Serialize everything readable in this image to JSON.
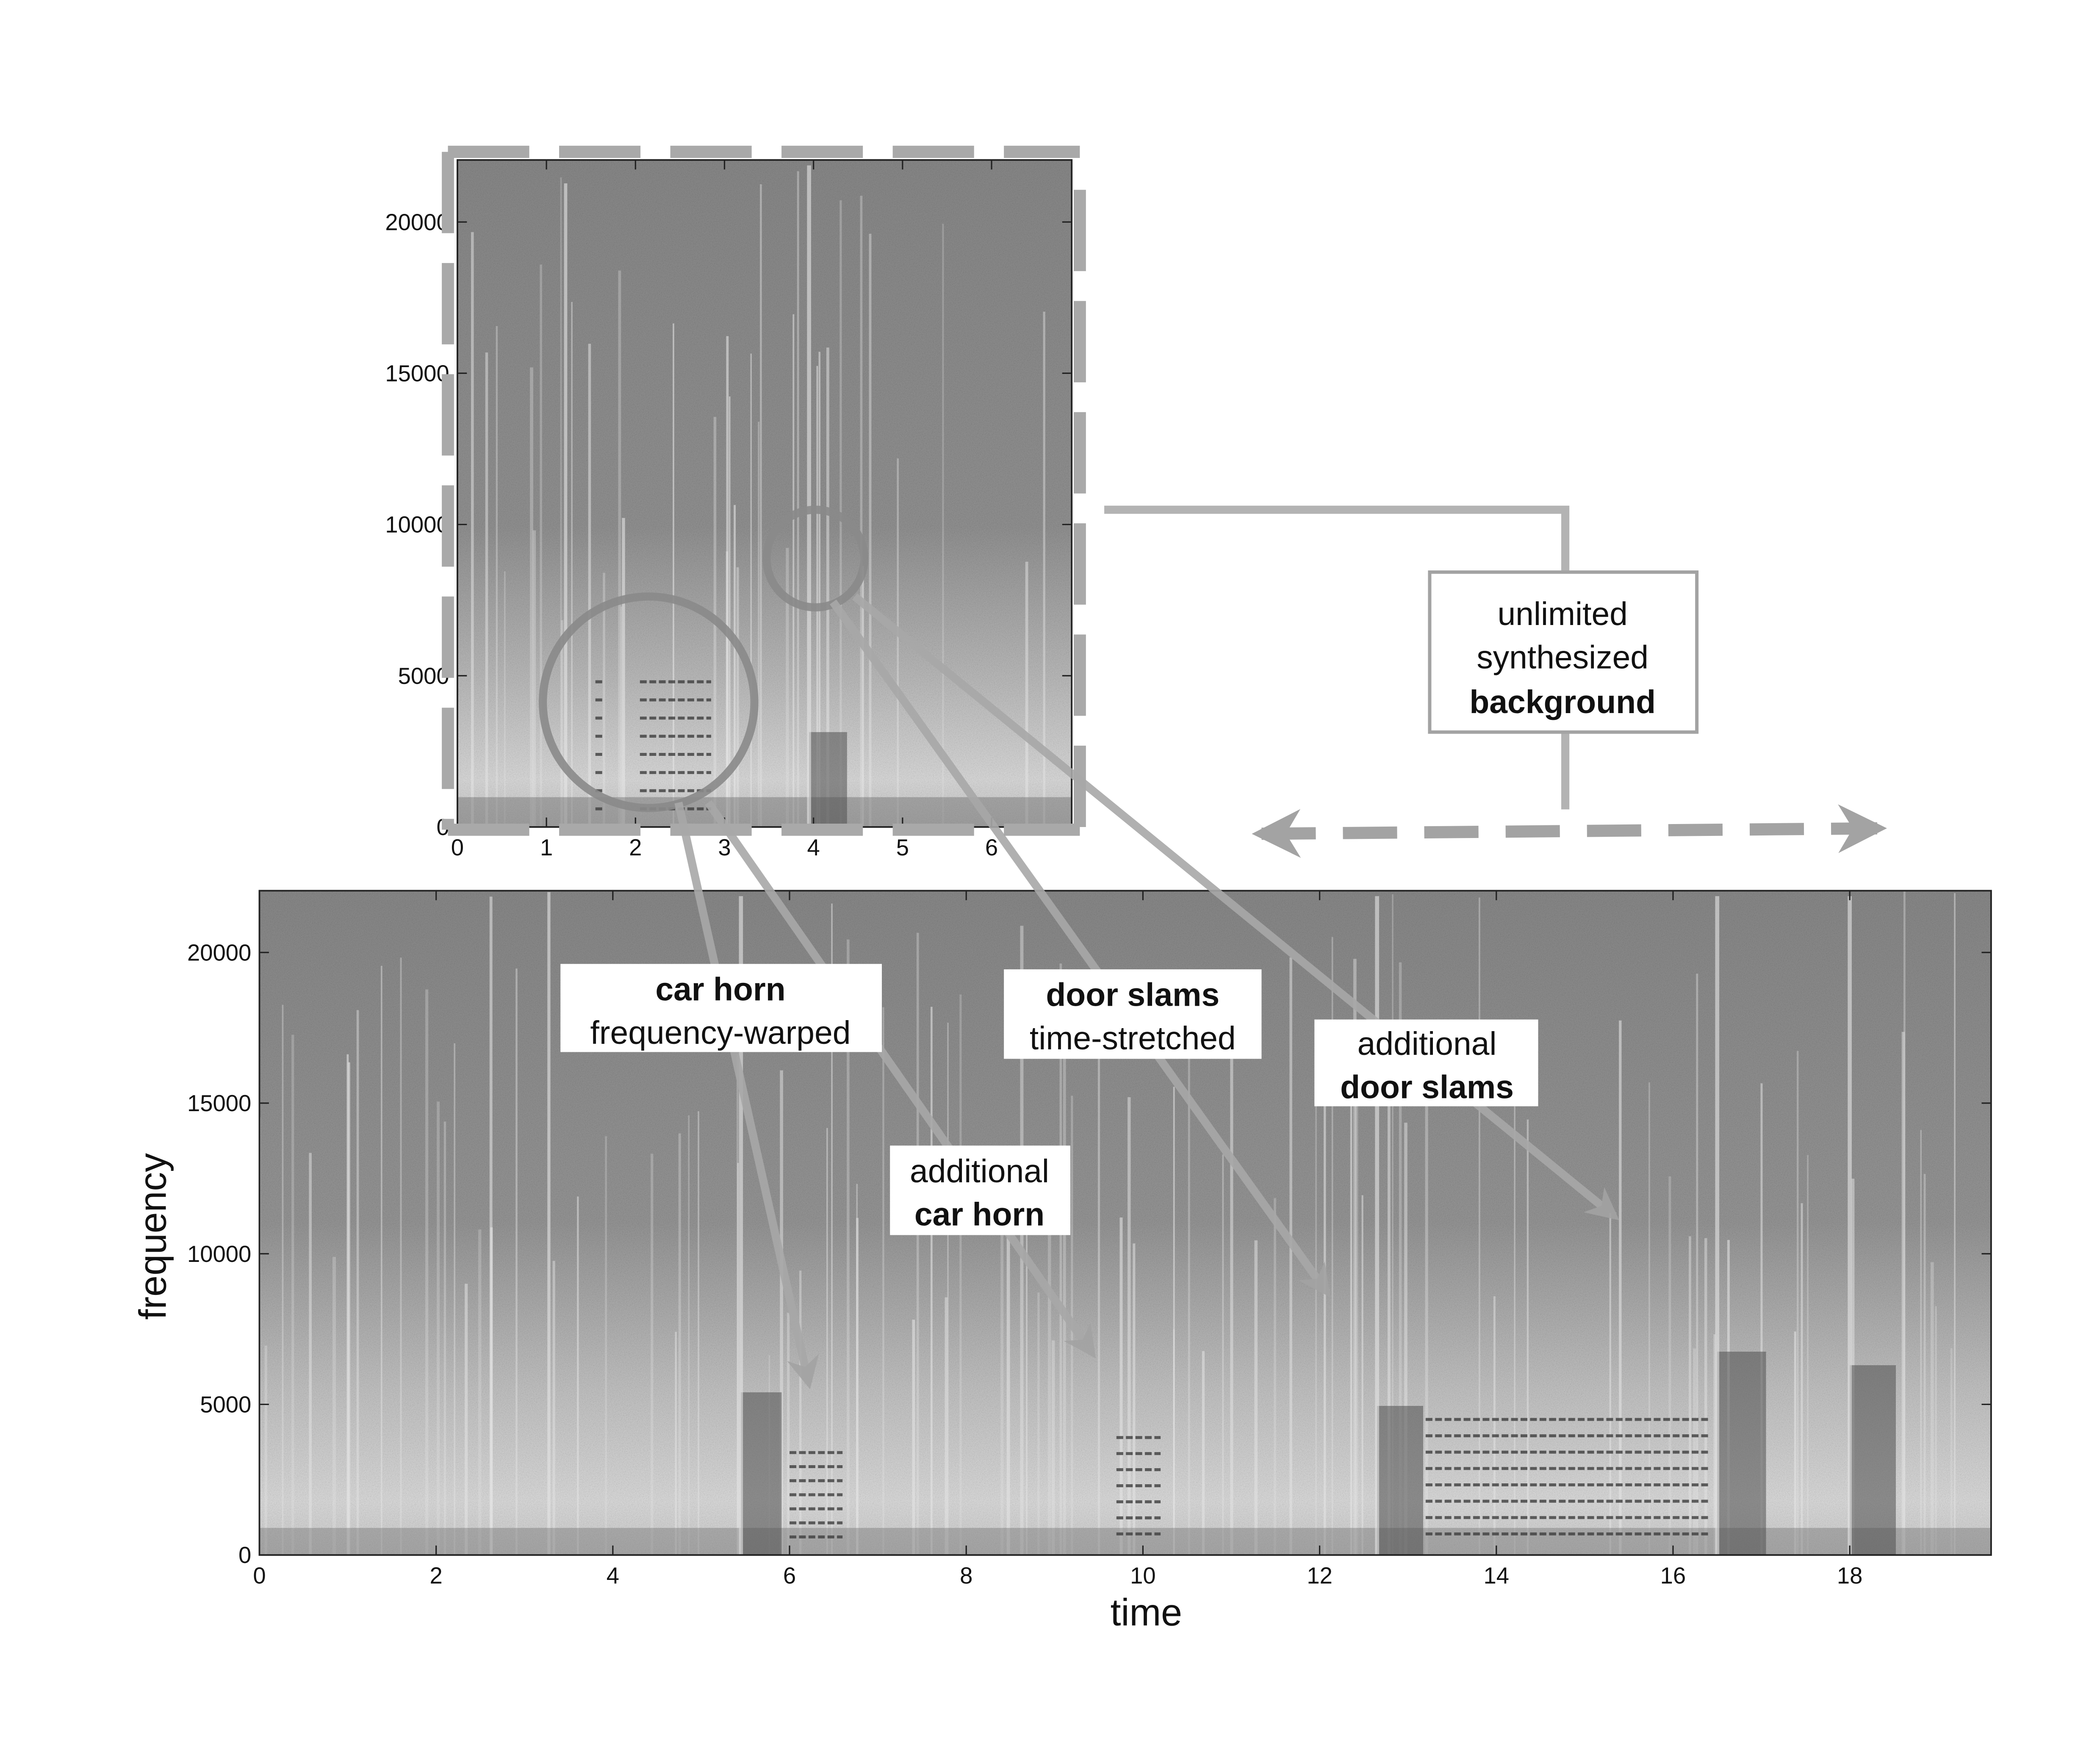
{
  "colors": {
    "spectrogram_dark": "#5e5e5e",
    "spectrogram_mid": "#8c8c8c",
    "spectrogram_light": "#d9d9d9",
    "annotation_gray": "#a8a8a8",
    "circle_gray": "#8a8a8a",
    "text": "#111111"
  },
  "source_spectrogram": {
    "x_ticks": [
      "0",
      "1",
      "2",
      "3",
      "4",
      "5",
      "6"
    ],
    "y_ticks": [
      "0",
      "5000",
      "10000",
      "15000",
      "20000"
    ],
    "x_range": [
      0,
      6.9
    ],
    "y_range": [
      0,
      22050
    ]
  },
  "synthesized_spectrogram": {
    "x_ticks": [
      "0",
      "2",
      "4",
      "6",
      "8",
      "10",
      "12",
      "14",
      "16",
      "18"
    ],
    "y_ticks": [
      "0",
      "5000",
      "10000",
      "15000",
      "20000"
    ],
    "x_range": [
      0,
      19.6
    ],
    "y_range": [
      0,
      22050
    ],
    "xlabel": "time",
    "ylabel": "frequency"
  },
  "labels": {
    "background": {
      "line1": "unlimited",
      "line2": "synthesized",
      "line3": "background"
    },
    "car_horn": {
      "line1": "car horn",
      "line2": "frequency-warped"
    },
    "door_slams": {
      "line1": "door slams",
      "line2": "time-stretched"
    },
    "additional_car_horn": {
      "line1": "additional",
      "line2": "car horn"
    },
    "additional_door_slams": {
      "line1": "additional",
      "line2": "door slams"
    }
  }
}
